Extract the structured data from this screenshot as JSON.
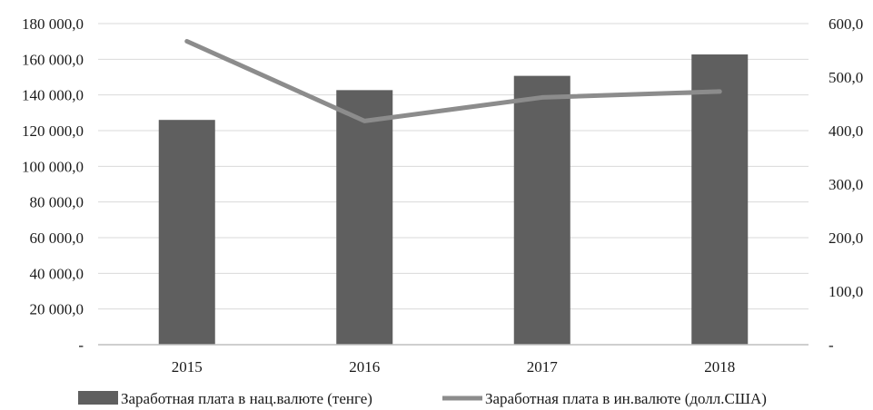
{
  "chart_data": {
    "type": "bar",
    "categories": [
      "2015",
      "2016",
      "2017",
      "2018"
    ],
    "series": [
      {
        "name": "Заработная плата в нац.валюте (тенге)",
        "type": "bar",
        "axis": "left",
        "color": "#5f5f5f",
        "values": [
          126000,
          142700,
          150700,
          162700
        ]
      },
      {
        "name": "Заработная плата в ин.валюте (долл.США)",
        "type": "line",
        "axis": "right",
        "color": "#8c8c8c",
        "values": [
          567,
          418,
          462,
          473
        ]
      }
    ],
    "y_left": {
      "min": 0,
      "max": 180000,
      "ticks": [
        0,
        20000,
        40000,
        60000,
        80000,
        100000,
        120000,
        140000,
        160000,
        180000
      ],
      "tick_labels": [
        "-",
        "20 000,0",
        "40 000,0",
        "60 000,0",
        "80 000,0",
        "100 000,0",
        "120 000,0",
        "140 000,0",
        "160 000,0",
        "180 000,0"
      ]
    },
    "y_right": {
      "min": 0,
      "max": 600,
      "ticks": [
        0,
        100,
        200,
        300,
        400,
        500,
        600
      ],
      "tick_labels": [
        "-",
        "100,0",
        "200,0",
        "300,0",
        "400,0",
        "500,0",
        "600,0"
      ]
    },
    "grid": true,
    "legend_position": "bottom"
  }
}
